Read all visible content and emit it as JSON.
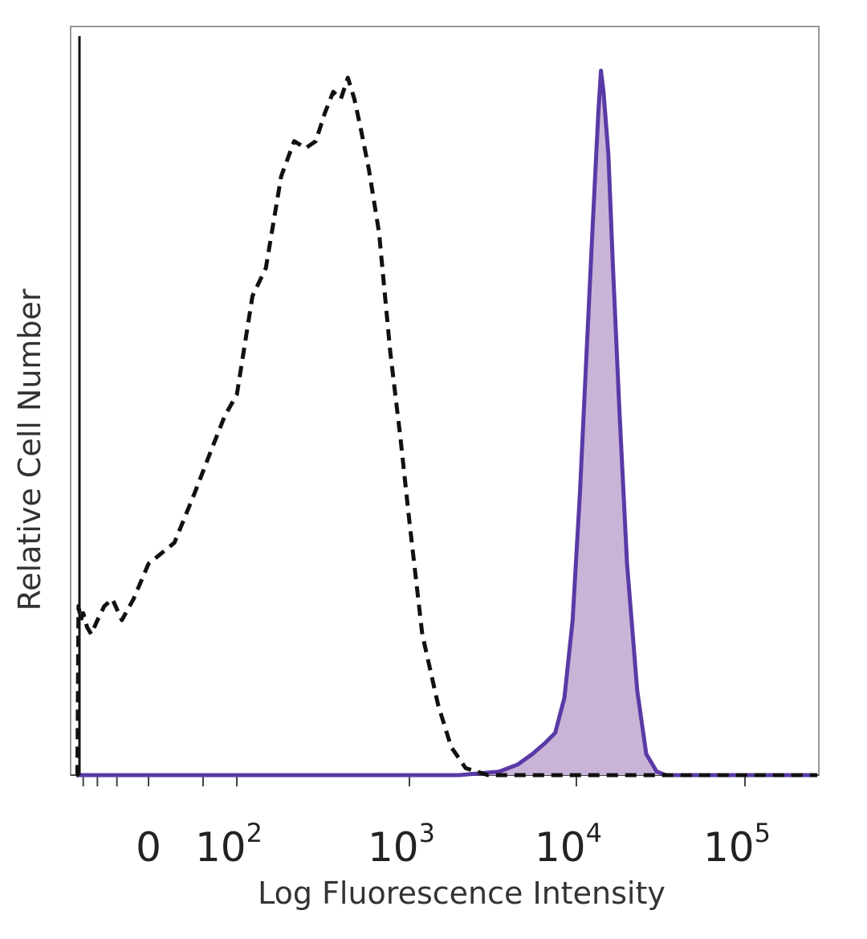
{
  "chart_data": {
    "type": "area",
    "xlabel": "Log Fluorescence Intensity",
    "ylabel": "Relative Cell Number",
    "x_scale": "biexponential",
    "x_ticks": [
      {
        "label_base": "0",
        "label_exp": "",
        "value": 0
      },
      {
        "label_base": "10",
        "label_exp": "2",
        "value": 100
      },
      {
        "label_base": "10",
        "label_exp": "3",
        "value": 1000
      },
      {
        "label_base": "10",
        "label_exp": "4",
        "value": 10000
      },
      {
        "label_base": "10",
        "label_exp": "5",
        "value": 100000
      }
    ],
    "xlim": [
      -180,
      250000
    ],
    "ylim": [
      0,
      1
    ],
    "grid": false,
    "legend": "none",
    "series": [
      {
        "style": "dashed",
        "color": "#111111",
        "fill": "none",
        "x": [
          -180,
          -175,
          -170,
          -160,
          -150,
          -135,
          -120,
          -100,
          -80,
          -60,
          -40,
          -20,
          0,
          20,
          40,
          60,
          80,
          100,
          130,
          160,
          200,
          240,
          280,
          320,
          360,
          400,
          440,
          480,
          520,
          560,
          620,
          700,
          800,
          900,
          1000,
          1200,
          1500,
          1800,
          2200,
          3000,
          5000,
          10000,
          50000,
          250000
        ],
        "y": [
          0.0,
          0.0,
          0.24,
          0.22,
          0.23,
          0.21,
          0.2,
          0.22,
          0.24,
          0.25,
          0.22,
          0.25,
          0.3,
          0.33,
          0.4,
          0.46,
          0.51,
          0.54,
          0.68,
          0.72,
          0.85,
          0.9,
          0.89,
          0.9,
          0.94,
          0.97,
          0.96,
          0.99,
          0.96,
          0.92,
          0.86,
          0.77,
          0.6,
          0.48,
          0.36,
          0.2,
          0.1,
          0.04,
          0.01,
          0.0,
          0.0,
          0.0,
          0.0,
          0.0
        ]
      },
      {
        "style": "solid",
        "color": "#5a3aa6",
        "fill": "#c9b4d8",
        "x": [
          -180,
          2000,
          3500,
          4500,
          5500,
          6500,
          7500,
          8500,
          9500,
          10500,
          11500,
          12500,
          13500,
          14000,
          14500,
          15500,
          16500,
          18000,
          20000,
          23000,
          26000,
          30000,
          34000,
          40000,
          250000
        ],
        "y": [
          0.0,
          0.0,
          0.005,
          0.015,
          0.03,
          0.045,
          0.06,
          0.11,
          0.22,
          0.4,
          0.6,
          0.78,
          0.94,
          1.0,
          0.97,
          0.88,
          0.72,
          0.52,
          0.3,
          0.12,
          0.03,
          0.005,
          0.0,
          0.0,
          0.0
        ]
      }
    ]
  },
  "colors": {
    "frame": "#999999",
    "axis": "#444444",
    "dashed_series": "#111111",
    "filled_series_line": "#5a3aa6",
    "filled_series_fill": "#c9b4d8"
  }
}
